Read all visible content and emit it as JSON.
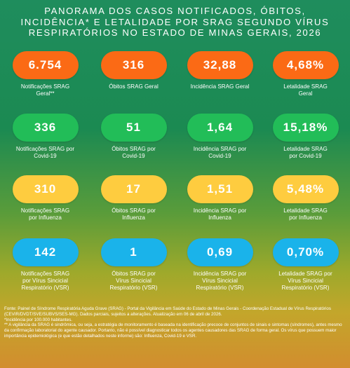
{
  "header": {
    "line1": "PANORAMA DOS CASOS NOTIFICADOS, ÓBITOS,",
    "line2": "INCIDÊNCIA* E LETALIDADE POR SRAG SEGUNDO VÍRUS",
    "line3": "RESPIRATÓRIOS NO ESTADO DE MINAS GERAIS, 2026"
  },
  "colors": {
    "orange": "#fb6a15",
    "green": "#22bd58",
    "yellow": "#fecc3f",
    "blue": "#1ab3ea"
  },
  "rows": [
    {
      "theme": "orange",
      "cards": [
        {
          "value": "6.754",
          "l1": "Notificações SRAG",
          "l2": "Geral**",
          "l3": ""
        },
        {
          "value": "316",
          "l1": "Óbitos SRAG Geral",
          "l2": "",
          "l3": ""
        },
        {
          "value": "32,88",
          "l1": "Incidência SRAG Geral",
          "l2": "",
          "l3": ""
        },
        {
          "value": "4,68%",
          "l1": "Letalidade SRAG",
          "l2": "Geral",
          "l3": ""
        }
      ]
    },
    {
      "theme": "green",
      "cards": [
        {
          "value": "336",
          "l1": "Notificações SRAG por",
          "l2": "Covid-19",
          "l3": ""
        },
        {
          "value": "51",
          "l1": "Óbitos SRAG por",
          "l2": "Covid-19",
          "l3": ""
        },
        {
          "value": "1,64",
          "l1": "Incidência SRAG por",
          "l2": "Covid-19",
          "l3": ""
        },
        {
          "value": "15,18%",
          "l1": "Letalidade SRAG",
          "l2": "por Covid-19",
          "l3": ""
        }
      ]
    },
    {
      "theme": "yellow",
      "cards": [
        {
          "value": "310",
          "l1": "Notificações SRAG",
          "l2": "por Influenza",
          "l3": ""
        },
        {
          "value": "17",
          "l1": "Óbitos SRAG por",
          "l2": "Influenza",
          "l3": ""
        },
        {
          "value": "1,51",
          "l1": "Incidência SRAG por",
          "l2": "Influenza",
          "l3": ""
        },
        {
          "value": "5,48%",
          "l1": "Letalidade SRAG",
          "l2": "por Influenza",
          "l3": ""
        }
      ]
    },
    {
      "theme": "blue",
      "cards": [
        {
          "value": "142",
          "l1": "Notificações SRAG",
          "l2": "por Vírus Sincicial",
          "l3": "Respiratório (VSR)"
        },
        {
          "value": "1",
          "l1": "Óbitos SRAG por",
          "l2": "Vírus Sincicial",
          "l3": "Respiratório (VSR)"
        },
        {
          "value": "0,69",
          "l1": "Incidência SRAG por",
          "l2": "Vírus Sincicial",
          "l3": "Respiratório (VSR)"
        },
        {
          "value": "0,70%",
          "l1": "Letalidade SRAG por",
          "l2": "Vírus Sincicial",
          "l3": "Respiratório (VSR)"
        }
      ]
    }
  ],
  "footer": {
    "source": "Fonte: Painel de Síndrome Respiratória Aguda Grave (SRAG) - Portal da Vigilância em Saúde do Estado de Minas Gerais - Coordenação Estadual de Vírus Respiratórios (CEVIR/DVDT/SVE/SUBVS/SES-MG). Dados parciais, sujeitos a alterações. Atualização em 06 de abril de 2026.",
    "note1": "*Incidência por 100.000 habitantes.",
    "note2": "** A vigilância da SRAG é sindrômica, ou seja, a estratégia de monitoramento é baseada na identificação precoce de conjuntos de sinais e sintomas (síndromes), antes mesmo da confirmação laboratorial do agente causador. Portanto, não é possível diagnosticar todos os agentes causadores das SRAG de forma geral. Os vírus que possuem maior importância epidemiológica (e que estão detalhados neste informe) são: Influenza, Covid-19 e VSR."
  }
}
